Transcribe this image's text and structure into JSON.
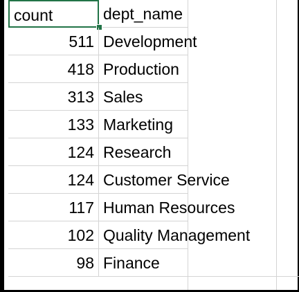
{
  "sheet": {
    "headers": {
      "count": "count",
      "dept_name": "dept_name"
    },
    "rows": [
      {
        "count": "511",
        "dept_name": "Development"
      },
      {
        "count": "418",
        "dept_name": "Production"
      },
      {
        "count": "313",
        "dept_name": "Sales"
      },
      {
        "count": "133",
        "dept_name": "Marketing"
      },
      {
        "count": "124",
        "dept_name": "Research"
      },
      {
        "count": "124",
        "dept_name": "Customer Service"
      },
      {
        "count": "117",
        "dept_name": "Human Resources"
      },
      {
        "count": "102",
        "dept_name": "Quality Management"
      },
      {
        "count": "98",
        "dept_name": "Finance"
      }
    ],
    "selected_cell": "A1",
    "colors": {
      "selection": "#217346",
      "gridline": "#d4d4d4"
    }
  }
}
